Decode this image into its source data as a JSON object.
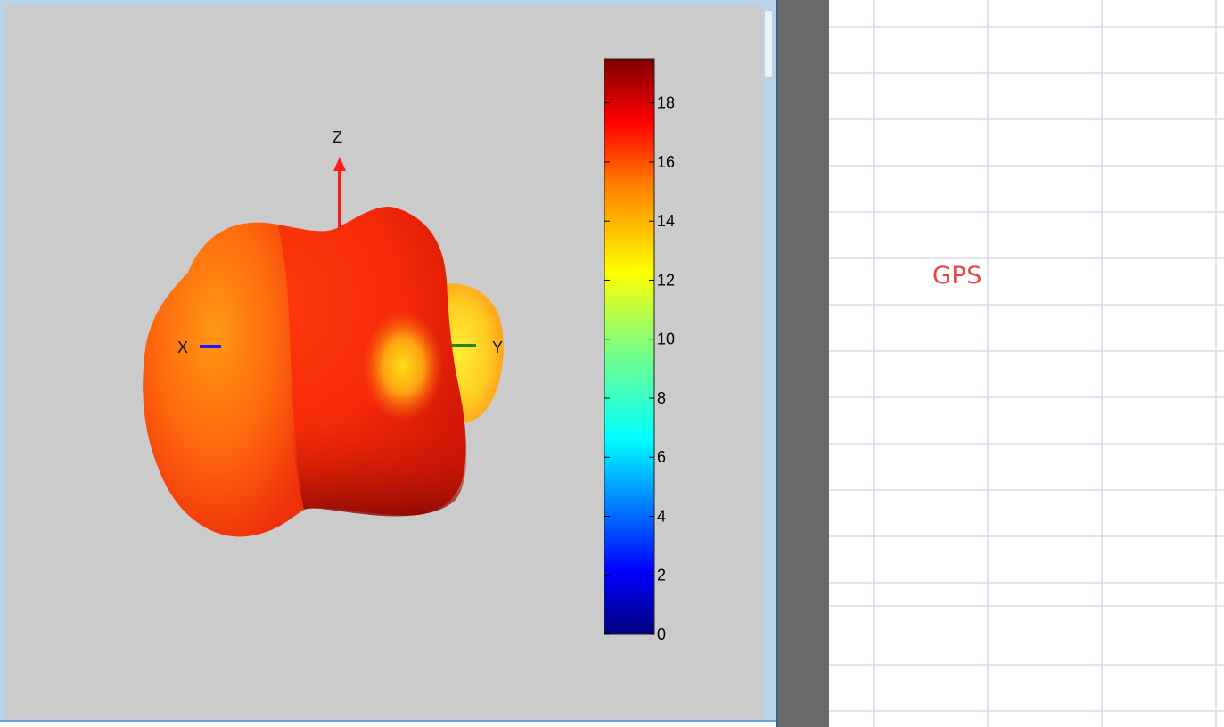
{
  "plot": {
    "axes": {
      "x_label": "X",
      "y_label": "Y",
      "z_label": "Z"
    },
    "colorbar": {
      "colormap": "jet",
      "range": [
        0,
        19.5
      ],
      "tick_labels": [
        "0",
        "2",
        "4",
        "6",
        "8",
        "10",
        "12",
        "14",
        "16",
        "18"
      ],
      "tick_values": [
        0,
        2,
        4,
        6,
        8,
        10,
        12,
        14,
        16,
        18
      ]
    },
    "colors": {
      "background": "#cbcbcb",
      "z_arrow": "#ff1a1a",
      "x_axis": "#1a1aff",
      "y_axis": "#1a8a1a"
    }
  },
  "sheet": {
    "cell_text": "GPS",
    "cell_text_color": "#ef4444",
    "grid_color": "#d7dce8"
  }
}
